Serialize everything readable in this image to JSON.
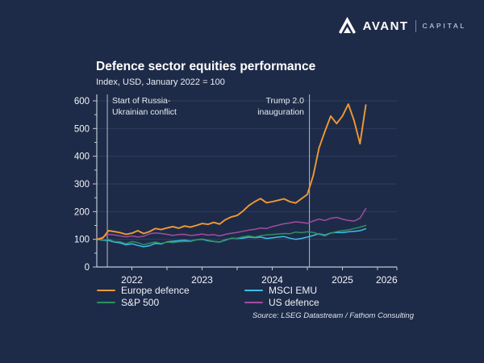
{
  "logo": {
    "brand": "AVANT",
    "suffix": "CAPITAL"
  },
  "title": "Defence sector equities performance",
  "subtitle": "Index, USD, January 2022 = 100",
  "source": "Source: LSEG Datastream / Fathom Consulting",
  "theme": {
    "background": "#1e2b48",
    "grid": "#2f3d5c",
    "axis": "#c2cad6",
    "tick_text": "#f2f4f8",
    "annotation_line": "#ccd4df",
    "annotation_text": "#e6ebf2"
  },
  "chart_data": {
    "type": "line",
    "title": "Defence sector equities performance",
    "subtitle": "Index, USD, January 2022 = 100",
    "xlabel": "",
    "ylabel": "Index, USD, January 2022 = 100",
    "ylim": [
      0,
      600
    ],
    "yticks": [
      0,
      100,
      200,
      300,
      400,
      500,
      600
    ],
    "grid": "horizontal",
    "legend_position": "bottom",
    "x_range_years": [
      0,
      4.28
    ],
    "xticks": [
      {
        "label": "2022",
        "offset": 0.5
      },
      {
        "label": "2023",
        "offset": 1.5
      },
      {
        "label": "2024",
        "offset": 2.5
      },
      {
        "label": "2025",
        "offset": 3.5
      },
      {
        "label": "2026",
        "offset": 4.13
      }
    ],
    "x": [
      "Jan 2022",
      "Feb 2022",
      "Mar 2022",
      "Apr 2022",
      "May 2022",
      "Jun 2022",
      "Jul 2022",
      "Aug 2022",
      "Sep 2022",
      "Oct 2022",
      "Nov 2022",
      "Dec 2022",
      "Jan 2023",
      "Feb 2023",
      "Mar 2023",
      "Apr 2023",
      "May 2023",
      "Jun 2023",
      "Jul 2023",
      "Aug 2023",
      "Sep 2023",
      "Oct 2023",
      "Nov 2023",
      "Dec 2023",
      "Jan 2024",
      "Feb 2024",
      "Mar 2024",
      "Apr 2024",
      "May 2024",
      "Jun 2024",
      "Jul 2024",
      "Aug 2024",
      "Sep 2024",
      "Oct 2024",
      "Nov 2024",
      "Dec 2024",
      "Jan 2025",
      "Feb 2025",
      "Mar 2025",
      "Apr 2025",
      "May 2025",
      "Jun 2025",
      "Jul 2025",
      "Aug 2025",
      "Sep 2025",
      "Oct 2025",
      "Nov 2025"
    ],
    "series": [
      {
        "name": "Europe defence",
        "color": "#f09a33",
        "values": [
          100,
          104,
          131,
          128,
          124,
          118,
          122,
          131,
          121,
          128,
          139,
          135,
          141,
          146,
          140,
          148,
          144,
          150,
          157,
          154,
          161,
          155,
          171,
          181,
          186,
          202,
          222,
          236,
          247,
          232,
          236,
          241,
          246,
          236,
          231,
          247,
          262,
          330,
          430,
          490,
          545,
          518,
          545,
          588,
          528,
          445,
          585
        ]
      },
      {
        "name": "S&P 500",
        "color": "#2f8f63",
        "values": [
          100,
          97,
          100,
          92,
          91,
          84,
          92,
          88,
          80,
          86,
          90,
          85,
          90,
          88,
          91,
          92,
          92,
          98,
          101,
          97,
          93,
          91,
          99,
          103,
          104,
          109,
          112,
          108,
          113,
          116,
          117,
          119,
          121,
          120,
          126,
          124,
          127,
          125,
          118,
          112,
          122,
          128,
          131,
          134,
          139,
          144,
          150
        ]
      },
      {
        "name": "MSCI EMU",
        "color": "#3cbfe8",
        "values": [
          100,
          96,
          96,
          90,
          87,
          80,
          84,
          78,
          73,
          77,
          85,
          83,
          91,
          93,
          95,
          97,
          94,
          98,
          100,
          95,
          92,
          90,
          97,
          104,
          103,
          104,
          108,
          106,
          108,
          103,
          105,
          108,
          110,
          104,
          100,
          103,
          108,
          114,
          120,
          115,
          123,
          125,
          124,
          127,
          129,
          131,
          138
        ]
      },
      {
        "name": "US defence",
        "color": "#a14d9f",
        "values": [
          100,
          108,
          118,
          116,
          112,
          109,
          112,
          108,
          111,
          120,
          123,
          121,
          118,
          114,
          117,
          118,
          114,
          116,
          119,
          115,
          117,
          112,
          118,
          122,
          125,
          129,
          133,
          136,
          141,
          139,
          146,
          151,
          156,
          159,
          163,
          161,
          158,
          166,
          173,
          168,
          176,
          179,
          173,
          168,
          166,
          176,
          211
        ]
      }
    ],
    "annotations": [
      {
        "line1": "Start of Russia-",
        "line2": "Ukrainian conflict",
        "x_years": 0.15,
        "align": "left"
      },
      {
        "line1": "Trump 2.0",
        "line2": "inauguration",
        "x_years": 3.03,
        "align": "right"
      }
    ]
  }
}
